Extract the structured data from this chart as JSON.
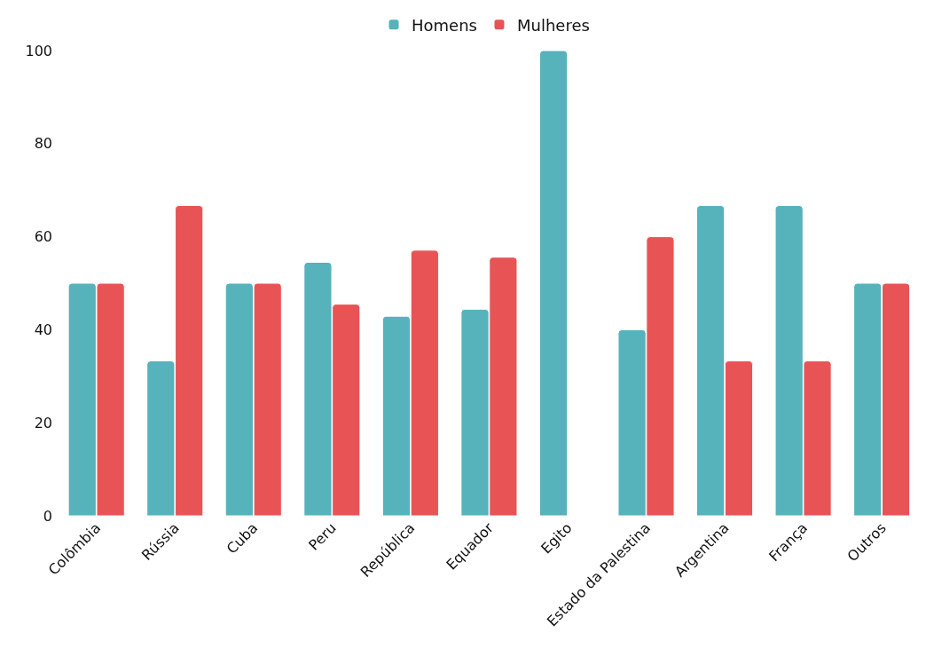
{
  "chart_data": {
    "type": "bar",
    "categories": [
      "Colômbia",
      "Rússia",
      "Cuba",
      "Peru",
      "República",
      "Equador",
      "Egito",
      "Estado da Palestina",
      "Argentina",
      "França",
      "Outros"
    ],
    "series": [
      {
        "name": "Homens",
        "color": "#56b2bb",
        "values": [
          50,
          33.3,
          50,
          54.5,
          42.9,
          44.4,
          100,
          40,
          66.7,
          66.7,
          50
        ]
      },
      {
        "name": "Mulheres",
        "color": "#e85456",
        "values": [
          50,
          66.7,
          50,
          45.5,
          57.1,
          55.6,
          null,
          60,
          33.3,
          33.3,
          50
        ]
      }
    ],
    "ylim": [
      0,
      100
    ],
    "yticks": [
      0,
      20,
      40,
      60,
      80,
      100
    ],
    "grid": false,
    "legend": "top"
  }
}
